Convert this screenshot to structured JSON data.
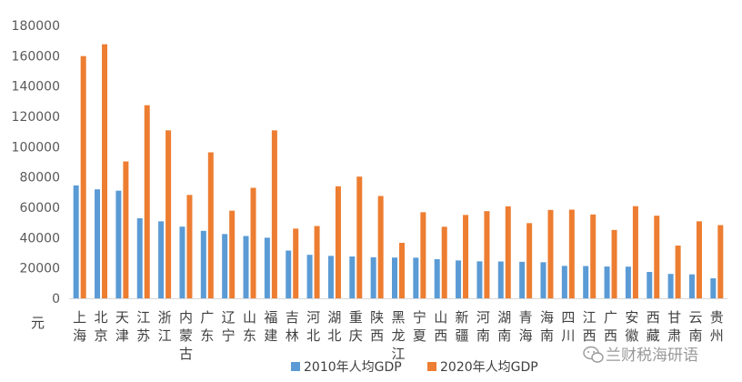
{
  "chart_data": {
    "type": "bar",
    "unit_label": "元",
    "ylim": [
      0,
      180000
    ],
    "y_ticks": [
      0,
      20000,
      40000,
      60000,
      80000,
      100000,
      120000,
      140000,
      160000,
      180000
    ],
    "y_tick_labels": [
      "0",
      "20000",
      "40000",
      "60000",
      "80000",
      "100000",
      "120000",
      "140000",
      "160000",
      "180000"
    ],
    "grid": false,
    "legend_position": "bottom",
    "categories": [
      "上海",
      "北京",
      "天津",
      "江苏",
      "浙江",
      "内蒙古",
      "广东",
      "辽宁",
      "山东",
      "福建",
      "吉林",
      "河北",
      "湖北",
      "重庆",
      "陕西",
      "黑龙江",
      "宁夏",
      "山西",
      "新疆",
      "河南",
      "湖南",
      "青海",
      "海南",
      "四川",
      "江西",
      "广西",
      "安徽",
      "西藏",
      "甘肃",
      "云南",
      "贵州"
    ],
    "series": [
      {
        "name": "2010年人均GDP",
        "color": "#5B9BD5",
        "values": [
          74500,
          71900,
          71000,
          52800,
          50800,
          47300,
          44500,
          42400,
          41100,
          40000,
          31500,
          28700,
          28000,
          27600,
          27100,
          26900,
          26800,
          25800,
          25000,
          24400,
          24300,
          24100,
          23800,
          21400,
          21300,
          21000,
          20900,
          17400,
          16100,
          15800,
          13200
        ]
      },
      {
        "name": "2020年人均GDP",
        "color": "#ED7D31",
        "values": [
          159800,
          167600,
          90300,
          127400,
          110800,
          68200,
          96300,
          57800,
          72900,
          110800,
          46000,
          47700,
          73900,
          80300,
          67500,
          36600,
          56800,
          47200,
          55000,
          57500,
          60700,
          49600,
          58300,
          58500,
          55300,
          45100,
          60800,
          54500,
          34800,
          50800,
          48300
        ]
      }
    ]
  },
  "watermark": "兰财税海研语",
  "watermark_icon": "wechat-icon"
}
